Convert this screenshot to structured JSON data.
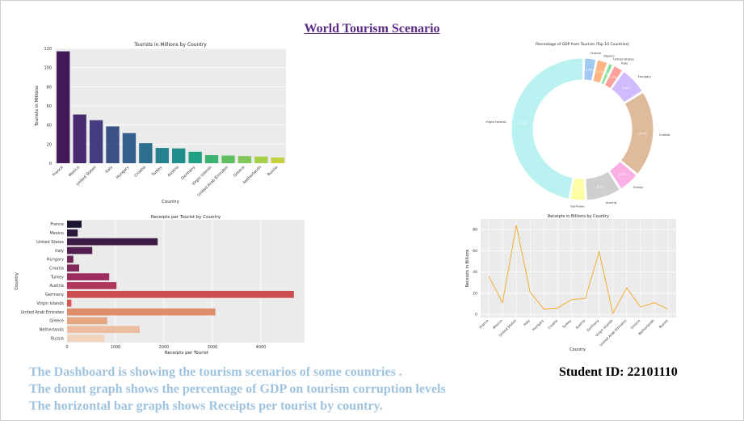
{
  "page": {
    "title": "World Tourism Scenario",
    "captions": [
      "The Dashboard is showing the tourism scenarios of some countries .",
      "The donut graph shows the percentage of  GDP on tourism corruption levels",
      "The horizontal bar graph shows Receipts per tourist by country."
    ],
    "student_id": "Student ID: 22101110"
  },
  "chart_data": [
    {
      "type": "bar",
      "title": "Tourists in Millions by Country",
      "xlabel": "Country",
      "ylabel": "Tourists in Millions",
      "ylim": [
        0,
        120
      ],
      "yticks": [
        0,
        20,
        40,
        60,
        80,
        100,
        120
      ],
      "categories": [
        "France",
        "Mexico",
        "United States",
        "Italy",
        "Hungary",
        "Croatia",
        "Turkey",
        "Austria",
        "Germany",
        "Virgin Islands",
        "United Arab Emirates",
        "Greece",
        "Netherlands",
        "Russia"
      ],
      "values": [
        117,
        51,
        45,
        38.5,
        31.5,
        21,
        16,
        15.5,
        12,
        8.5,
        8,
        7.5,
        7,
        6
      ],
      "colors": [
        "#43195a",
        "#482b6e",
        "#433d80",
        "#3c5186",
        "#355e8b",
        "#2d6e8e",
        "#26828e",
        "#208f8c",
        "#20a186",
        "#3cb371",
        "#5fbe5f",
        "#82c85a",
        "#a4d04b",
        "#c3d03f"
      ],
      "grid": true
    },
    {
      "type": "pie",
      "title": "Percentage of GDP from Tourism (Top 10 Countries)",
      "labels": [
        "France",
        "Mexico",
        "United States",
        "Italy",
        "Hungary",
        "Croatia",
        "Turkey",
        "Austria",
        "Germany",
        "Virgin Islands"
      ],
      "values": [
        2.9,
        2.7,
        1.3,
        2.5,
        6.4,
        19.9,
        5.0,
        8.2,
        3.7,
        47.4
      ],
      "colors": [
        "#a1c9f4",
        "#ffb482",
        "#8de5a1",
        "#ff9f9b",
        "#d0bbff",
        "#debb9b",
        "#fab0e4",
        "#cfcfcf",
        "#fffea3",
        "#b9f2f0"
      ],
      "donut": true
    },
    {
      "type": "bar",
      "orientation": "horizontal",
      "title": "Receipts per Tourist by Country",
      "xlabel": "Receipts per Tourist",
      "ylabel": "Country",
      "xlim": [
        0,
        4900
      ],
      "xticks": [
        0,
        1000,
        2000,
        3000,
        4000
      ],
      "categories": [
        "France",
        "Mexico",
        "United States",
        "Italy",
        "Hungary",
        "Croatia",
        "Turkey",
        "Austria",
        "Germany",
        "Virgin Islands",
        "United Arab Emirates",
        "Greece",
        "Netherlands",
        "Russia"
      ],
      "values": [
        300,
        220,
        1870,
        520,
        130,
        250,
        870,
        1020,
        4680,
        90,
        3060,
        830,
        1500,
        770
      ],
      "colors": [
        "#1d1530",
        "#2c1a3d",
        "#3d1c47",
        "#51204f",
        "#6b2556",
        "#82285b",
        "#9c2d5e",
        "#b2355c",
        "#cd4f52",
        "#d9584e",
        "#de8d6c",
        "#e4a683",
        "#edbda1",
        "#f0d4bd"
      ],
      "grid": true
    },
    {
      "type": "line",
      "title": "Receipts in Billions by Country",
      "xlabel": "Country",
      "ylabel": "Receipts in Billions",
      "ylim": [
        -3,
        90
      ],
      "yticks": [
        0,
        20,
        40,
        60,
        80
      ],
      "categories": [
        "France",
        "Mexico",
        "United States",
        "Italy",
        "Hungary",
        "Croatia",
        "Turkey",
        "Austria",
        "Germany",
        "Virgin Islands",
        "United Arab Emirates",
        "Greece",
        "Netherlands",
        "Russia"
      ],
      "values": [
        36,
        11,
        84,
        21,
        5,
        6,
        14,
        15,
        59,
        1,
        25,
        7,
        11,
        5
      ],
      "color": "#f5a623",
      "grid": true
    }
  ]
}
